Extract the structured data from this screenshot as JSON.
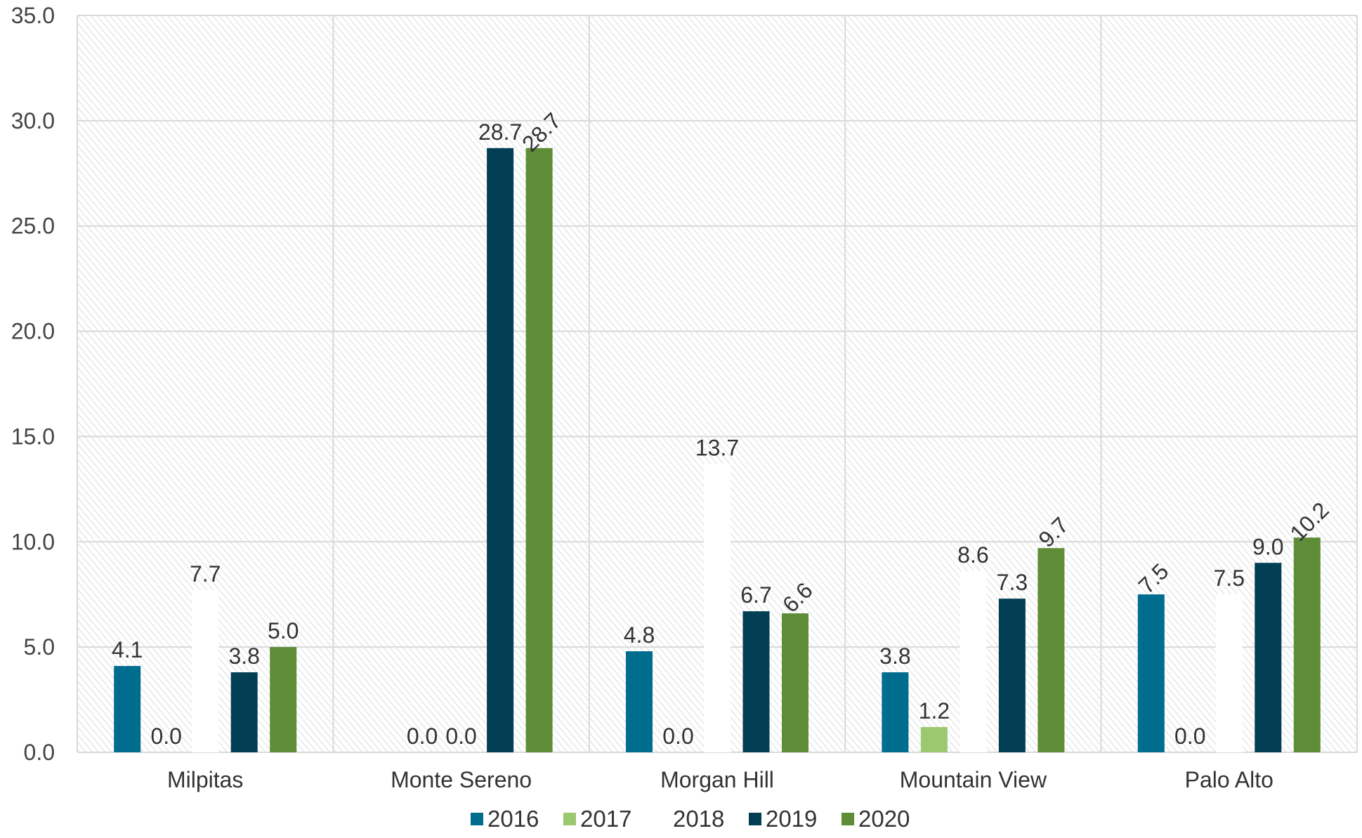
{
  "chart_data": {
    "type": "bar",
    "categories": [
      "Milpitas",
      "Monte Sereno",
      "Morgan Hill",
      "Mountain View",
      "Palo Alto"
    ],
    "series": [
      {
        "name": "2016",
        "color": "#006C8E",
        "values": [
          4.1,
          0.0,
          4.8,
          3.8,
          7.5
        ],
        "labels": [
          "4.1",
          "",
          "4.8",
          "3.8",
          "7.5"
        ]
      },
      {
        "name": "2017",
        "color": "#9CC870",
        "values": [
          0.0,
          0.0,
          0.0,
          1.2,
          0.0
        ],
        "labels": [
          "0.0",
          "0.0",
          "0.0",
          "1.2",
          "0.0"
        ]
      },
      {
        "name": "2018",
        "color": "#FFFFFF",
        "values": [
          7.7,
          0.0,
          13.7,
          8.6,
          7.5
        ],
        "labels": [
          "7.7",
          "0.0",
          "13.7",
          "8.6",
          "7.5"
        ]
      },
      {
        "name": "2019",
        "color": "#023F55",
        "values": [
          3.8,
          28.7,
          6.7,
          7.3,
          9.0
        ],
        "labels": [
          "3.8",
          "28.7",
          "6.7",
          "7.3",
          "9.0"
        ]
      },
      {
        "name": "2020",
        "color": "#5E8C37",
        "values": [
          5.0,
          28.7,
          6.6,
          9.7,
          10.2
        ],
        "labels": [
          "5.0",
          "28.7",
          "6.6",
          "9.7",
          "10.2"
        ]
      }
    ],
    "yticks": [
      "0.0",
      "5.0",
      "10.0",
      "15.0",
      "20.0",
      "25.0",
      "30.0",
      "35.0"
    ],
    "ylim": [
      0,
      35
    ],
    "grid": true,
    "legend_position": "bottom",
    "title": "",
    "xlabel": "",
    "ylabel": ""
  }
}
